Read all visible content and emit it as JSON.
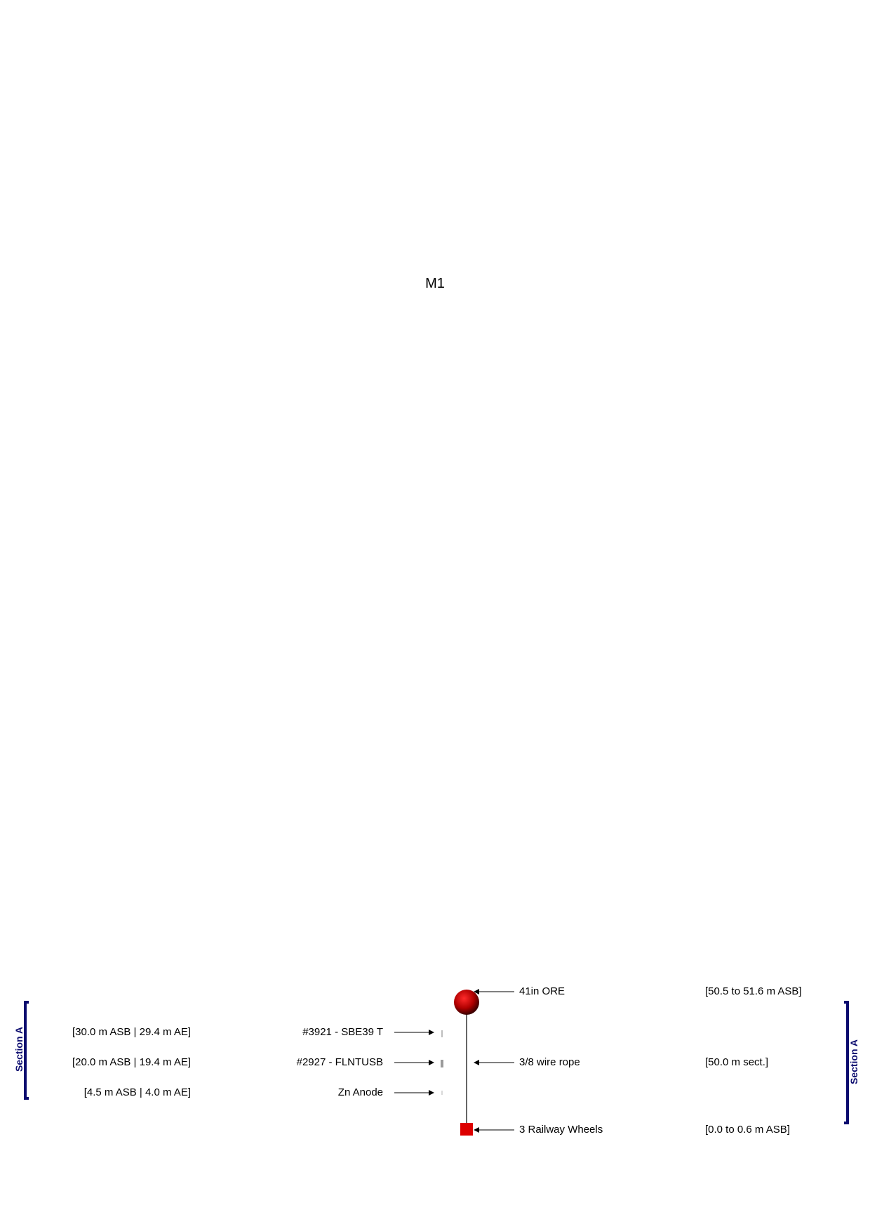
{
  "title": "M1",
  "components_right": [
    {
      "name": "41in ORE",
      "depth": "[50.5 to 51.6 m ASB]"
    },
    {
      "name": "3/8 wire rope",
      "depth": "[50.0 m sect.]"
    },
    {
      "name": "3 Railway Wheels",
      "depth": "[0.0 to 0.6 m ASB]"
    }
  ],
  "instruments_left": [
    {
      "name": "#3921 - SBE39 T",
      "depth": "[30.0 m ASB | 29.4 m AE]"
    },
    {
      "name": "#2927 - FLNTUSB",
      "depth": "[20.0 m ASB | 19.4 m AE]"
    },
    {
      "name": "Zn Anode",
      "depth": "[4.5 m ASB | 4.0 m AE]"
    }
  ],
  "sections": {
    "left": "Section A",
    "right": "Section A"
  },
  "colors": {
    "float": "#b00000",
    "anchor": "#dd0000",
    "section_bracket": "#0a0a6e",
    "line": "#000000"
  }
}
